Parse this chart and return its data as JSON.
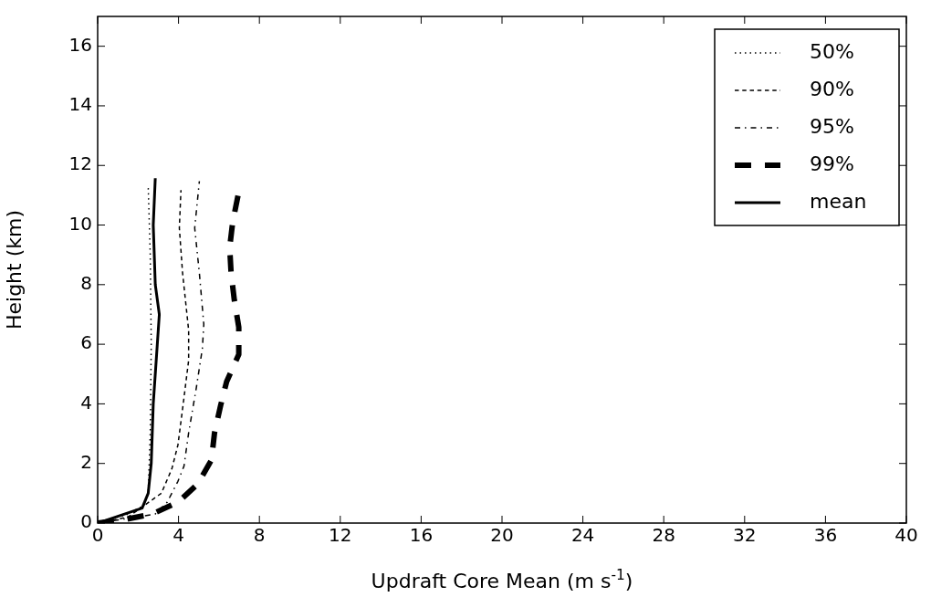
{
  "chart_data": {
    "type": "line",
    "xlabel": "Updraft Core Mean (m s$^{-1}$)",
    "ylabel": "Height (km)",
    "xlim": [
      0,
      40
    ],
    "xticks": [
      0,
      4,
      8,
      12,
      16,
      20,
      24,
      28,
      32,
      36,
      40
    ],
    "ylim": [
      0,
      17
    ],
    "yticks": [
      0,
      2,
      4,
      6,
      8,
      10,
      12,
      14,
      16
    ],
    "legend": "top right",
    "grid": false,
    "marker": "none",
    "series": [
      {
        "name": "50%",
        "color": "#000000",
        "line_style": "dotted",
        "x": [
          0,
          1.5,
          2.3,
          2.5,
          2.6,
          2.65,
          2.6,
          2.5
        ],
        "values": [
          0,
          0.3,
          0.6,
          1,
          3,
          6,
          9,
          11.3
        ]
      },
      {
        "name": "90%",
        "color": "#000000",
        "line_style": "dashed",
        "x": [
          0,
          1.5,
          3.15,
          3.67,
          3.97,
          4.2,
          4.5,
          4.5,
          4.2,
          4.04,
          4.12
        ],
        "values": [
          0,
          0.2,
          1,
          1.82,
          2.62,
          3.83,
          5.46,
          6.47,
          8.39,
          9.9,
          11.17
        ]
      },
      {
        "name": "95%",
        "color": "#000000",
        "line_style": "dashdot",
        "x": [
          0,
          2.84,
          3.44,
          3.97,
          4.27,
          4.5,
          4.88,
          5.18,
          5.25,
          5.03,
          4.8,
          5.03
        ],
        "values": [
          0,
          0.3,
          0.7,
          1.4,
          1.91,
          3.03,
          4.54,
          5.86,
          6.67,
          8.39,
          9.9,
          11.47
        ]
      },
      {
        "name": "99%",
        "color": "#000000",
        "line_style": "dashed",
        "x": [
          0,
          1.2,
          2.69,
          3.97,
          4.95,
          5.63,
          5.78,
          6.08,
          6.38,
          6.98,
          6.98,
          6.76,
          6.6,
          6.53,
          6.68,
          6.98
        ],
        "values": [
          0,
          0.1,
          0.3,
          0.7,
          1.31,
          2.12,
          3.03,
          3.94,
          4.75,
          5.66,
          6.57,
          7.48,
          8.39,
          9.25,
          10.1,
          11.12
        ]
      },
      {
        "name": "mean",
        "color": "#000000",
        "line_style": "solid",
        "x": [
          0,
          2.2,
          2.5,
          2.65,
          2.75,
          2.95,
          3.05,
          2.85,
          2.75,
          2.85
        ],
        "values": [
          0,
          0.5,
          1,
          2,
          4,
          6,
          7,
          8,
          10,
          11.57
        ]
      }
    ]
  }
}
